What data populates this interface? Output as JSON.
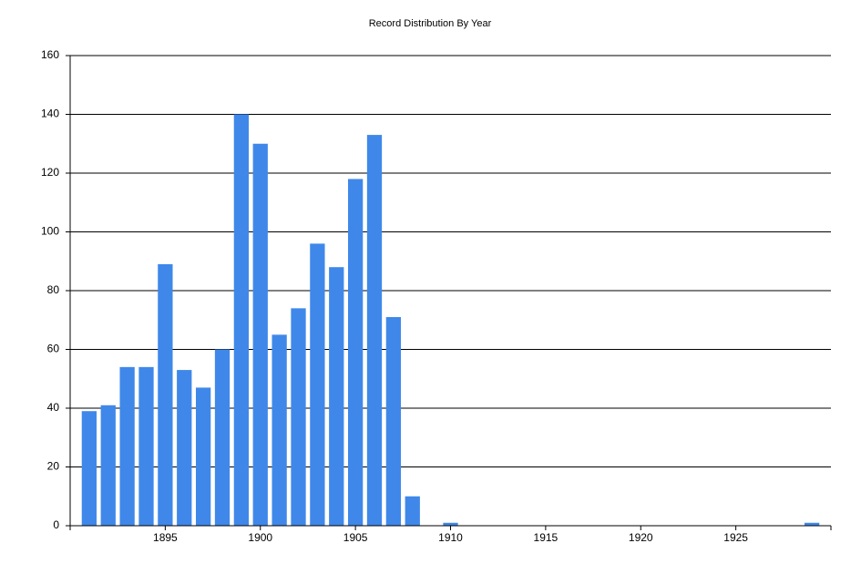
{
  "chart_data": {
    "type": "bar",
    "title": "Record Distribution By Year",
    "x": [
      1891,
      1892,
      1893,
      1894,
      1895,
      1896,
      1897,
      1898,
      1899,
      1900,
      1901,
      1902,
      1903,
      1904,
      1905,
      1906,
      1907,
      1908,
      1910,
      1929
    ],
    "values": [
      39,
      41,
      54,
      54,
      89,
      53,
      47,
      60,
      140,
      130,
      65,
      74,
      96,
      88,
      118,
      133,
      71,
      10,
      1,
      1
    ],
    "color": "#3f88ea",
    "xlim": [
      1890,
      1930
    ],
    "xticks": [
      1895,
      1900,
      1905,
      1910,
      1915,
      1920,
      1925
    ],
    "ylim": [
      0,
      160
    ],
    "yticks": [
      0,
      20,
      40,
      60,
      80,
      100,
      120,
      140,
      160
    ],
    "grid": true
  }
}
